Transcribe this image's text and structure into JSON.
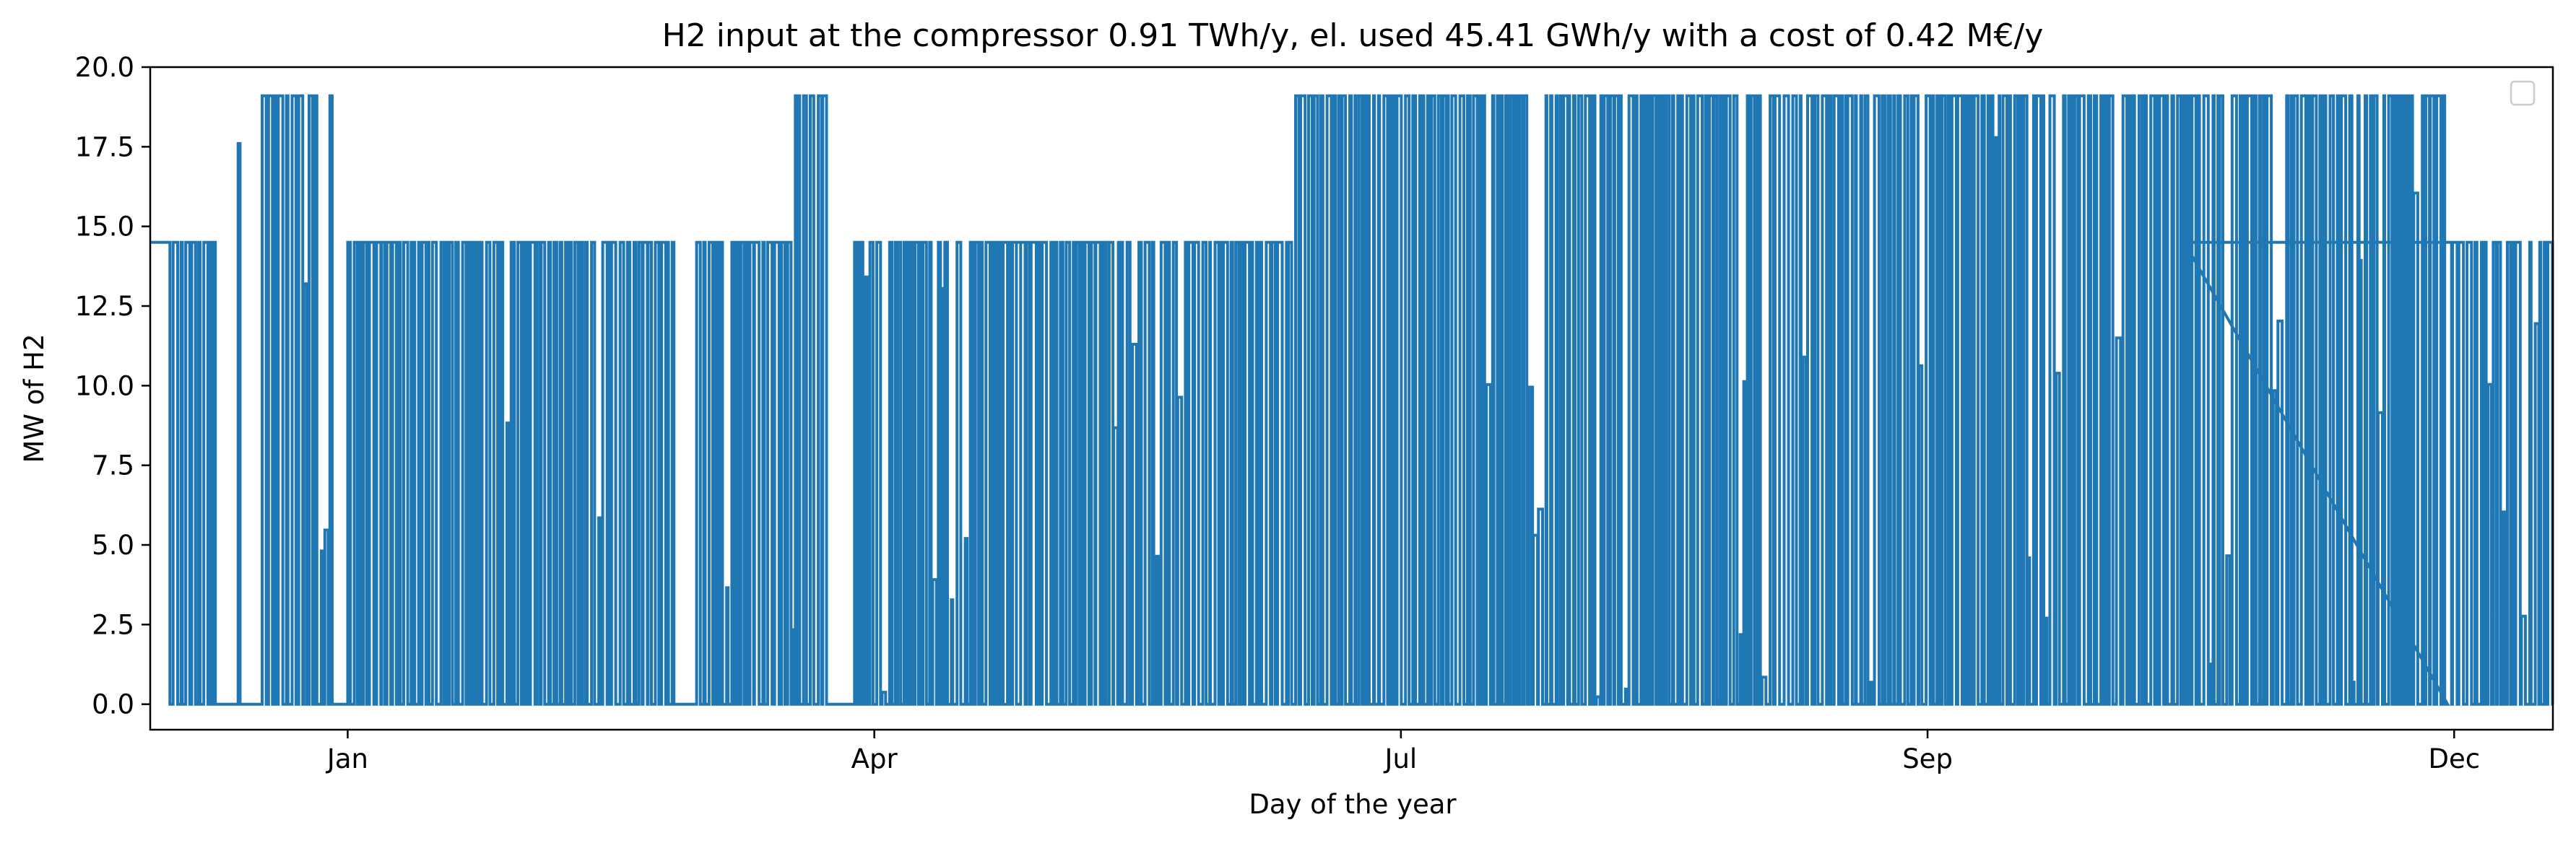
{
  "chart_data": {
    "type": "line",
    "title": "H2 input at the compressor 0.91 TWh/y, el. used 45.41 GWh/y with a cost of 0.42 M€/y",
    "xlabel": "Day of the year",
    "ylabel": "MW of H2",
    "xlim": [
      0,
      365
    ],
    "ylim": [
      -0.8,
      20.0
    ],
    "xticks": [
      {
        "label": "Jan",
        "value": 30
      },
      {
        "label": "Apr",
        "value": 110
      },
      {
        "label": "Jul",
        "value": 190
      },
      {
        "label": "Sep",
        "value": 270
      },
      {
        "label": "Dec",
        "value": 350
      }
    ],
    "yticks": [
      0.0,
      2.5,
      5.0,
      7.5,
      10.0,
      12.5,
      15.0,
      17.5,
      20.0
    ],
    "ytick_labels": [
      "0.0",
      "2.5",
      "5.0",
      "7.5",
      "10.0",
      "12.5",
      "15.0",
      "17.5",
      "20.0"
    ],
    "legend": {
      "placement": "top-right",
      "entries": []
    },
    "grid": false,
    "colors": {
      "series": "#1f77b4"
    },
    "series": [
      {
        "description": "hourly compressor H2 input, switching between 0, 14.5 and 19.1 MW",
        "levels": [
          0,
          14.5,
          19.1
        ],
        "segments": [
          {
            "x": [
              0,
              2.5
            ],
            "y": 14.5
          },
          {
            "x": [
              2.5,
              10
            ],
            "pattern": "switch",
            "high": 14.5,
            "low": 0
          },
          {
            "x": [
              10,
              13
            ],
            "y": 0
          },
          {
            "x": [
              13,
              14
            ],
            "spike": 17.6
          },
          {
            "x": [
              14,
              17
            ],
            "y": 0
          },
          {
            "x": [
              17,
              28
            ],
            "pattern": "switch",
            "high": 19.1,
            "low": 0
          },
          {
            "x": [
              28,
              30
            ],
            "y": 0
          },
          {
            "x": [
              30,
              80
            ],
            "pattern": "switch",
            "high": 14.5,
            "low": 0
          },
          {
            "x": [
              80,
              83
            ],
            "y": 0
          },
          {
            "x": [
              83,
              98
            ],
            "pattern": "switch",
            "high": 14.5,
            "low": 0
          },
          {
            "x": [
              98,
              103
            ],
            "pattern": "switch",
            "high": 19.1,
            "low": 0
          },
          {
            "x": [
              103,
              107
            ],
            "y": 0
          },
          {
            "x": [
              107,
              134
            ],
            "pattern": "switch",
            "high": 14.5,
            "low": 0
          },
          {
            "x": [
              128,
              134
            ],
            "y": 14.5
          },
          {
            "x": [
              134,
              174
            ],
            "pattern": "switch",
            "high": 14.5,
            "low": 0
          },
          {
            "x": [
              174,
              349
            ],
            "pattern": "switch",
            "high": 19.1,
            "low": 0
          },
          {
            "x": [
              309,
              317
            ],
            "y": 14.5
          },
          {
            "x": [
              349,
              365
            ],
            "pattern": "switch",
            "high": 14.5,
            "low": 0
          }
        ]
      }
    ]
  }
}
